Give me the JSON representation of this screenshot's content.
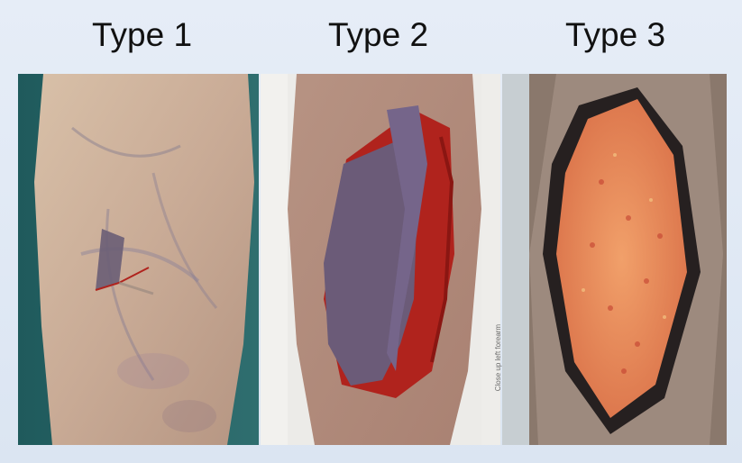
{
  "panels": [
    {
      "label": "Type 1"
    },
    {
      "label": "Type 2"
    },
    {
      "label": "Type 3"
    }
  ],
  "panel3_caption": "Close up left forearm",
  "colors": {
    "background": "#dfe8f4",
    "skin": "#c9a894",
    "wound_red": "#b0231d",
    "flap_purple": "#6a5a78",
    "granulation": "#e8874e"
  }
}
